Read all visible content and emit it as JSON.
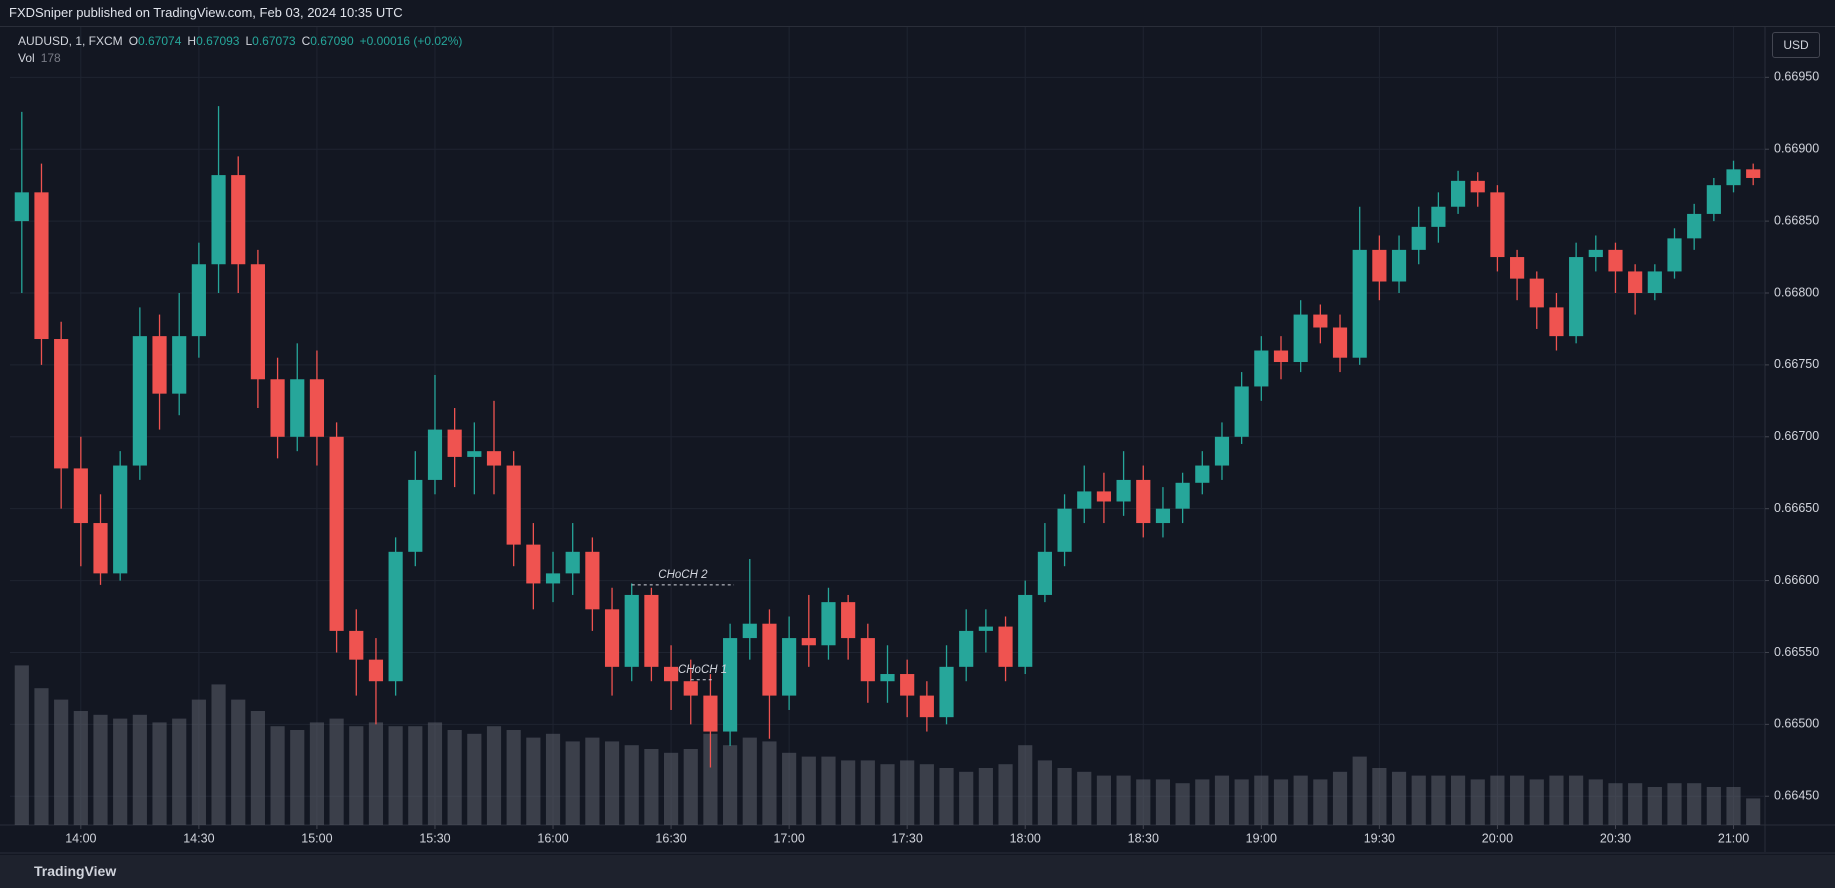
{
  "chart_data": {
    "type": "candlestick",
    "title": "FXDSniper published on TradingView.com, Feb 03, 2024 10:35 UTC",
    "symbol": "AUDUSD, 1, FXCM",
    "ohlc_legend": [
      {
        "label": "O",
        "value": "0.67074"
      },
      {
        "label": "H",
        "value": "0.67093"
      },
      {
        "label": "L",
        "value": "0.67073"
      },
      {
        "label": "C",
        "value": "0.67090"
      }
    ],
    "change": "+0.00016 (+0.02%)",
    "volume_label": "Vol",
    "volume_value": 178,
    "currency": "USD",
    "brand": "TradingView",
    "up_color": "#26a69a",
    "down_color": "#ef5350",
    "volume_color": "#5d606b",
    "grid": true,
    "xlim": [
      822,
      1268
    ],
    "ylim": [
      0.6643,
      0.66985
    ],
    "xticks": [
      {
        "value": 840,
        "label": "14:00"
      },
      {
        "value": 870,
        "label": "14:30"
      },
      {
        "value": 900,
        "label": "15:00"
      },
      {
        "value": 930,
        "label": "15:30"
      },
      {
        "value": 960,
        "label": "16:00"
      },
      {
        "value": 990,
        "label": "16:30"
      },
      {
        "value": 1020,
        "label": "17:00"
      },
      {
        "value": 1050,
        "label": "17:30"
      },
      {
        "value": 1080,
        "label": "18:00"
      },
      {
        "value": 1110,
        "label": "18:30"
      },
      {
        "value": 1140,
        "label": "19:00"
      },
      {
        "value": 1170,
        "label": "19:30"
      },
      {
        "value": 1200,
        "label": "20:00"
      },
      {
        "value": 1230,
        "label": "20:30"
      },
      {
        "value": 1260,
        "label": "21:00"
      }
    ],
    "yticks": [
      {
        "value": 0.6645,
        "label": "0.66450"
      },
      {
        "value": 0.665,
        "label": "0.66500"
      },
      {
        "value": 0.6655,
        "label": "0.66550"
      },
      {
        "value": 0.666,
        "label": "0.66600"
      },
      {
        "value": 0.6665,
        "label": "0.66650"
      },
      {
        "value": 0.667,
        "label": "0.66700"
      },
      {
        "value": 0.6675,
        "label": "0.66750"
      },
      {
        "value": 0.668,
        "label": "0.66800"
      },
      {
        "value": 0.6685,
        "label": "0.66850"
      },
      {
        "value": 0.669,
        "label": "0.66900"
      },
      {
        "value": 0.6695,
        "label": "0.66950"
      }
    ],
    "annotations": [
      {
        "text": "CHoCH 2",
        "x": [
          980,
          1006
        ],
        "y": 0.66597
      },
      {
        "text": "CHoCH 1",
        "x": [
          995,
          1001
        ],
        "y": 0.66531
      }
    ],
    "x": [
      825,
      830,
      835,
      840,
      845,
      850,
      855,
      860,
      865,
      870,
      875,
      880,
      885,
      890,
      895,
      900,
      905,
      910,
      915,
      920,
      925,
      930,
      935,
      940,
      945,
      950,
      955,
      960,
      965,
      970,
      975,
      980,
      985,
      990,
      995,
      1000,
      1005,
      1010,
      1015,
      1020,
      1025,
      1030,
      1035,
      1040,
      1045,
      1050,
      1055,
      1060,
      1065,
      1070,
      1075,
      1080,
      1085,
      1090,
      1095,
      1100,
      1105,
      1110,
      1115,
      1120,
      1125,
      1130,
      1135,
      1140,
      1145,
      1150,
      1155,
      1160,
      1165,
      1170,
      1175,
      1180,
      1185,
      1190,
      1195,
      1200,
      1205,
      1210,
      1215,
      1220,
      1225,
      1230,
      1235,
      1240,
      1245,
      1250,
      1255,
      1260,
      1265
    ],
    "open": [
      0.6685,
      0.6687,
      0.66768,
      0.66678,
      0.6664,
      0.66605,
      0.6668,
      0.6677,
      0.6673,
      0.6677,
      0.6682,
      0.66882,
      0.6682,
      0.6674,
      0.667,
      0.6674,
      0.667,
      0.66565,
      0.66545,
      0.6653,
      0.6662,
      0.6667,
      0.66705,
      0.66686,
      0.6669,
      0.6668,
      0.66625,
      0.66598,
      0.66605,
      0.6662,
      0.6658,
      0.6654,
      0.6659,
      0.6654,
      0.6653,
      0.6652,
      0.66495,
      0.6656,
      0.6657,
      0.6652,
      0.6656,
      0.66555,
      0.66585,
      0.6656,
      0.6653,
      0.66535,
      0.6652,
      0.66505,
      0.6654,
      0.66565,
      0.66568,
      0.6654,
      0.6659,
      0.6662,
      0.6665,
      0.66662,
      0.66655,
      0.6667,
      0.6664,
      0.6665,
      0.66668,
      0.6668,
      0.667,
      0.66735,
      0.6676,
      0.66752,
      0.66785,
      0.66776,
      0.66755,
      0.6683,
      0.66808,
      0.6683,
      0.66846,
      0.6686,
      0.66878,
      0.6687,
      0.66825,
      0.6681,
      0.6679,
      0.6677,
      0.66825,
      0.6683,
      0.66815,
      0.668,
      0.66815,
      0.66838,
      0.66855,
      0.66875,
      0.66886
    ],
    "high": [
      0.66926,
      0.6689,
      0.6678,
      0.667,
      0.6666,
      0.6669,
      0.6679,
      0.66785,
      0.668,
      0.66835,
      0.6693,
      0.66895,
      0.6683,
      0.66755,
      0.66765,
      0.6676,
      0.6671,
      0.6658,
      0.6656,
      0.6663,
      0.6669,
      0.66743,
      0.6672,
      0.6671,
      0.66725,
      0.6669,
      0.6664,
      0.6662,
      0.6664,
      0.6663,
      0.66595,
      0.66598,
      0.66595,
      0.66555,
      0.66545,
      0.66535,
      0.6657,
      0.66615,
      0.6658,
      0.66575,
      0.6659,
      0.66595,
      0.6659,
      0.6657,
      0.66555,
      0.66545,
      0.6653,
      0.66555,
      0.6658,
      0.6658,
      0.66575,
      0.666,
      0.6664,
      0.6666,
      0.6668,
      0.66675,
      0.6669,
      0.6668,
      0.66665,
      0.66675,
      0.6669,
      0.6671,
      0.66745,
      0.6677,
      0.6677,
      0.66795,
      0.66792,
      0.66785,
      0.6686,
      0.6684,
      0.6684,
      0.6686,
      0.6687,
      0.66885,
      0.66884,
      0.66875,
      0.6683,
      0.66815,
      0.668,
      0.66835,
      0.6684,
      0.66835,
      0.6682,
      0.6682,
      0.66845,
      0.66862,
      0.6688,
      0.66892,
      0.6689
    ],
    "low": [
      0.668,
      0.6675,
      0.6665,
      0.6661,
      0.66597,
      0.666,
      0.6667,
      0.66705,
      0.66715,
      0.66755,
      0.668,
      0.668,
      0.6672,
      0.66685,
      0.6669,
      0.6668,
      0.6655,
      0.6652,
      0.665,
      0.6652,
      0.6661,
      0.6666,
      0.66665,
      0.6666,
      0.6666,
      0.6661,
      0.6658,
      0.66585,
      0.6659,
      0.66565,
      0.6652,
      0.6653,
      0.6653,
      0.6651,
      0.665,
      0.6647,
      0.66485,
      0.66545,
      0.6649,
      0.6651,
      0.6654,
      0.66545,
      0.66545,
      0.66515,
      0.66515,
      0.66505,
      0.66495,
      0.665,
      0.6653,
      0.6655,
      0.6653,
      0.66535,
      0.66585,
      0.6661,
      0.6664,
      0.6664,
      0.66645,
      0.6663,
      0.6663,
      0.6664,
      0.6666,
      0.6667,
      0.66695,
      0.66725,
      0.6674,
      0.66745,
      0.66765,
      0.66745,
      0.6675,
      0.66795,
      0.668,
      0.6682,
      0.66835,
      0.66855,
      0.6686,
      0.66815,
      0.66795,
      0.66775,
      0.6676,
      0.66765,
      0.66815,
      0.668,
      0.66785,
      0.66795,
      0.6681,
      0.6683,
      0.6685,
      0.6687,
      0.66875
    ],
    "close": [
      0.6687,
      0.66768,
      0.66678,
      0.6664,
      0.66605,
      0.6668,
      0.6677,
      0.6673,
      0.6677,
      0.6682,
      0.66882,
      0.6682,
      0.6674,
      0.667,
      0.6674,
      0.667,
      0.66565,
      0.66545,
      0.6653,
      0.6662,
      0.6667,
      0.66705,
      0.66686,
      0.6669,
      0.6668,
      0.66625,
      0.66598,
      0.66605,
      0.6662,
      0.6658,
      0.6654,
      0.6659,
      0.6654,
      0.6653,
      0.6652,
      0.66495,
      0.6656,
      0.6657,
      0.6652,
      0.6656,
      0.66555,
      0.66585,
      0.6656,
      0.6653,
      0.66535,
      0.6652,
      0.66505,
      0.6654,
      0.66565,
      0.66568,
      0.6654,
      0.6659,
      0.6662,
      0.6665,
      0.66662,
      0.66655,
      0.6667,
      0.6664,
      0.6665,
      0.66668,
      0.6668,
      0.667,
      0.66735,
      0.6676,
      0.66752,
      0.66785,
      0.66776,
      0.66755,
      0.6683,
      0.66808,
      0.6683,
      0.66846,
      0.6686,
      0.66878,
      0.6687,
      0.66825,
      0.6681,
      0.6679,
      0.6677,
      0.66825,
      0.6683,
      0.66815,
      0.668,
      0.66815,
      0.66838,
      0.66855,
      0.66875,
      0.66886,
      0.6688
    ],
    "volume": [
      4200,
      3600,
      3300,
      3000,
      2900,
      2800,
      2900,
      2700,
      2800,
      3300,
      3700,
      3300,
      3000,
      2600,
      2500,
      2700,
      2800,
      2600,
      2700,
      2600,
      2600,
      2700,
      2500,
      2400,
      2600,
      2500,
      2300,
      2400,
      2200,
      2300,
      2200,
      2100,
      2000,
      1900,
      2000,
      2400,
      2100,
      2300,
      2200,
      1900,
      1800,
      1800,
      1700,
      1700,
      1600,
      1700,
      1600,
      1500,
      1400,
      1500,
      1600,
      2100,
      1700,
      1500,
      1400,
      1300,
      1300,
      1200,
      1200,
      1100,
      1200,
      1300,
      1200,
      1300,
      1200,
      1300,
      1200,
      1400,
      1800,
      1500,
      1400,
      1300,
      1300,
      1300,
      1200,
      1300,
      1300,
      1200,
      1300,
      1300,
      1200,
      1100,
      1100,
      1000,
      1100,
      1100,
      1000,
      1000,
      700
    ]
  }
}
